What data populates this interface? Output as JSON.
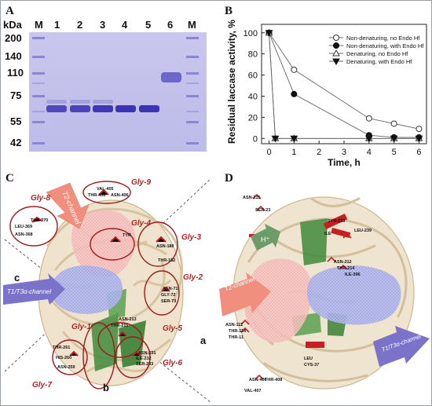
{
  "panels": {
    "a": "A",
    "b": "B",
    "c": "C",
    "d": "D"
  },
  "gel": {
    "unit": "kDa",
    "lane_labels": [
      "M",
      "1",
      "2",
      "3",
      "4",
      "5",
      "6",
      "M"
    ],
    "markers": [
      "200",
      "140",
      "110",
      "75",
      "55",
      "42"
    ]
  },
  "chart_data": {
    "type": "line",
    "x": [
      0,
      1,
      4,
      5,
      6
    ],
    "xlabel": "Time, h",
    "ylabel": "Residual laccase activity, %",
    "xlim": [
      -0.3,
      6.3
    ],
    "ylim": [
      -5,
      108
    ],
    "xticks": [
      0,
      1,
      2,
      3,
      4,
      5,
      6
    ],
    "yticks": [
      0,
      20,
      40,
      60,
      80,
      100
    ],
    "legend_position": "top-right",
    "series": [
      {
        "name": "Non-denaturing, no Endo Hf",
        "marker": "circle-open",
        "points": [
          [
            0,
            100
          ],
          [
            1,
            65
          ],
          [
            4,
            19
          ],
          [
            5,
            14
          ],
          [
            6,
            9
          ]
        ]
      },
      {
        "name": "Non-denaturing, with Endo Hf",
        "marker": "circle-filled",
        "points": [
          [
            0,
            100
          ],
          [
            1,
            42
          ],
          [
            4,
            3
          ],
          [
            5,
            1
          ],
          [
            6,
            1
          ]
        ]
      },
      {
        "name": "Denaturing, no Endo Hf",
        "marker": "triangle-open",
        "points": [
          [
            0,
            100
          ],
          [
            0.25,
            0
          ],
          [
            1,
            0
          ],
          [
            4,
            0
          ],
          [
            5,
            0
          ],
          [
            6,
            0
          ]
        ]
      },
      {
        "name": "Denaturing, with Endo Hf",
        "marker": "triangle-filled",
        "points": [
          [
            0,
            100
          ],
          [
            0.25,
            0
          ],
          [
            1,
            0
          ],
          [
            4,
            0
          ],
          [
            5,
            0
          ],
          [
            6,
            0
          ]
        ]
      }
    ]
  },
  "panel_c": {
    "gly_labels": [
      "Gly-9",
      "Gly-8",
      "Gly-4",
      "Gly-3",
      "Gly-2",
      "Gly-1",
      "Gly-5",
      "Gly-7",
      "Gly-6"
    ],
    "residues": [
      "VAL-405",
      "THR-408",
      "ASN-406",
      "THR-370",
      "LEU-369",
      "ASN-368",
      "TYR",
      "ASN-180",
      "THR-182",
      "ASN-71",
      "GLY-72",
      "SER-73",
      "ASN-213",
      "THR-215",
      "ASN-231",
      "ILE-232",
      "SER-233",
      "THR-261",
      "HIS-260",
      "ASN-259"
    ],
    "arrow_t2": "T2-channel",
    "arrow_t1": "T1/T3α-channel",
    "axis_labels": [
      "c",
      "a",
      "b"
    ]
  },
  "panel_d": {
    "residues": [
      "ASN-211",
      "SER-23",
      "SYR-233",
      "ILE",
      "LEU-239",
      "ASN-212",
      "THR-214",
      "ILE-396",
      "ASN-112",
      "THR-114",
      "THR-11",
      "LEU",
      "CYS-37",
      "ASN-406",
      "VAL-407",
      "THR-408"
    ],
    "arrow_h": "H⁺",
    "arrow_t2": "T2-channel",
    "arrow_t1": "T1/T3α-channel"
  }
}
